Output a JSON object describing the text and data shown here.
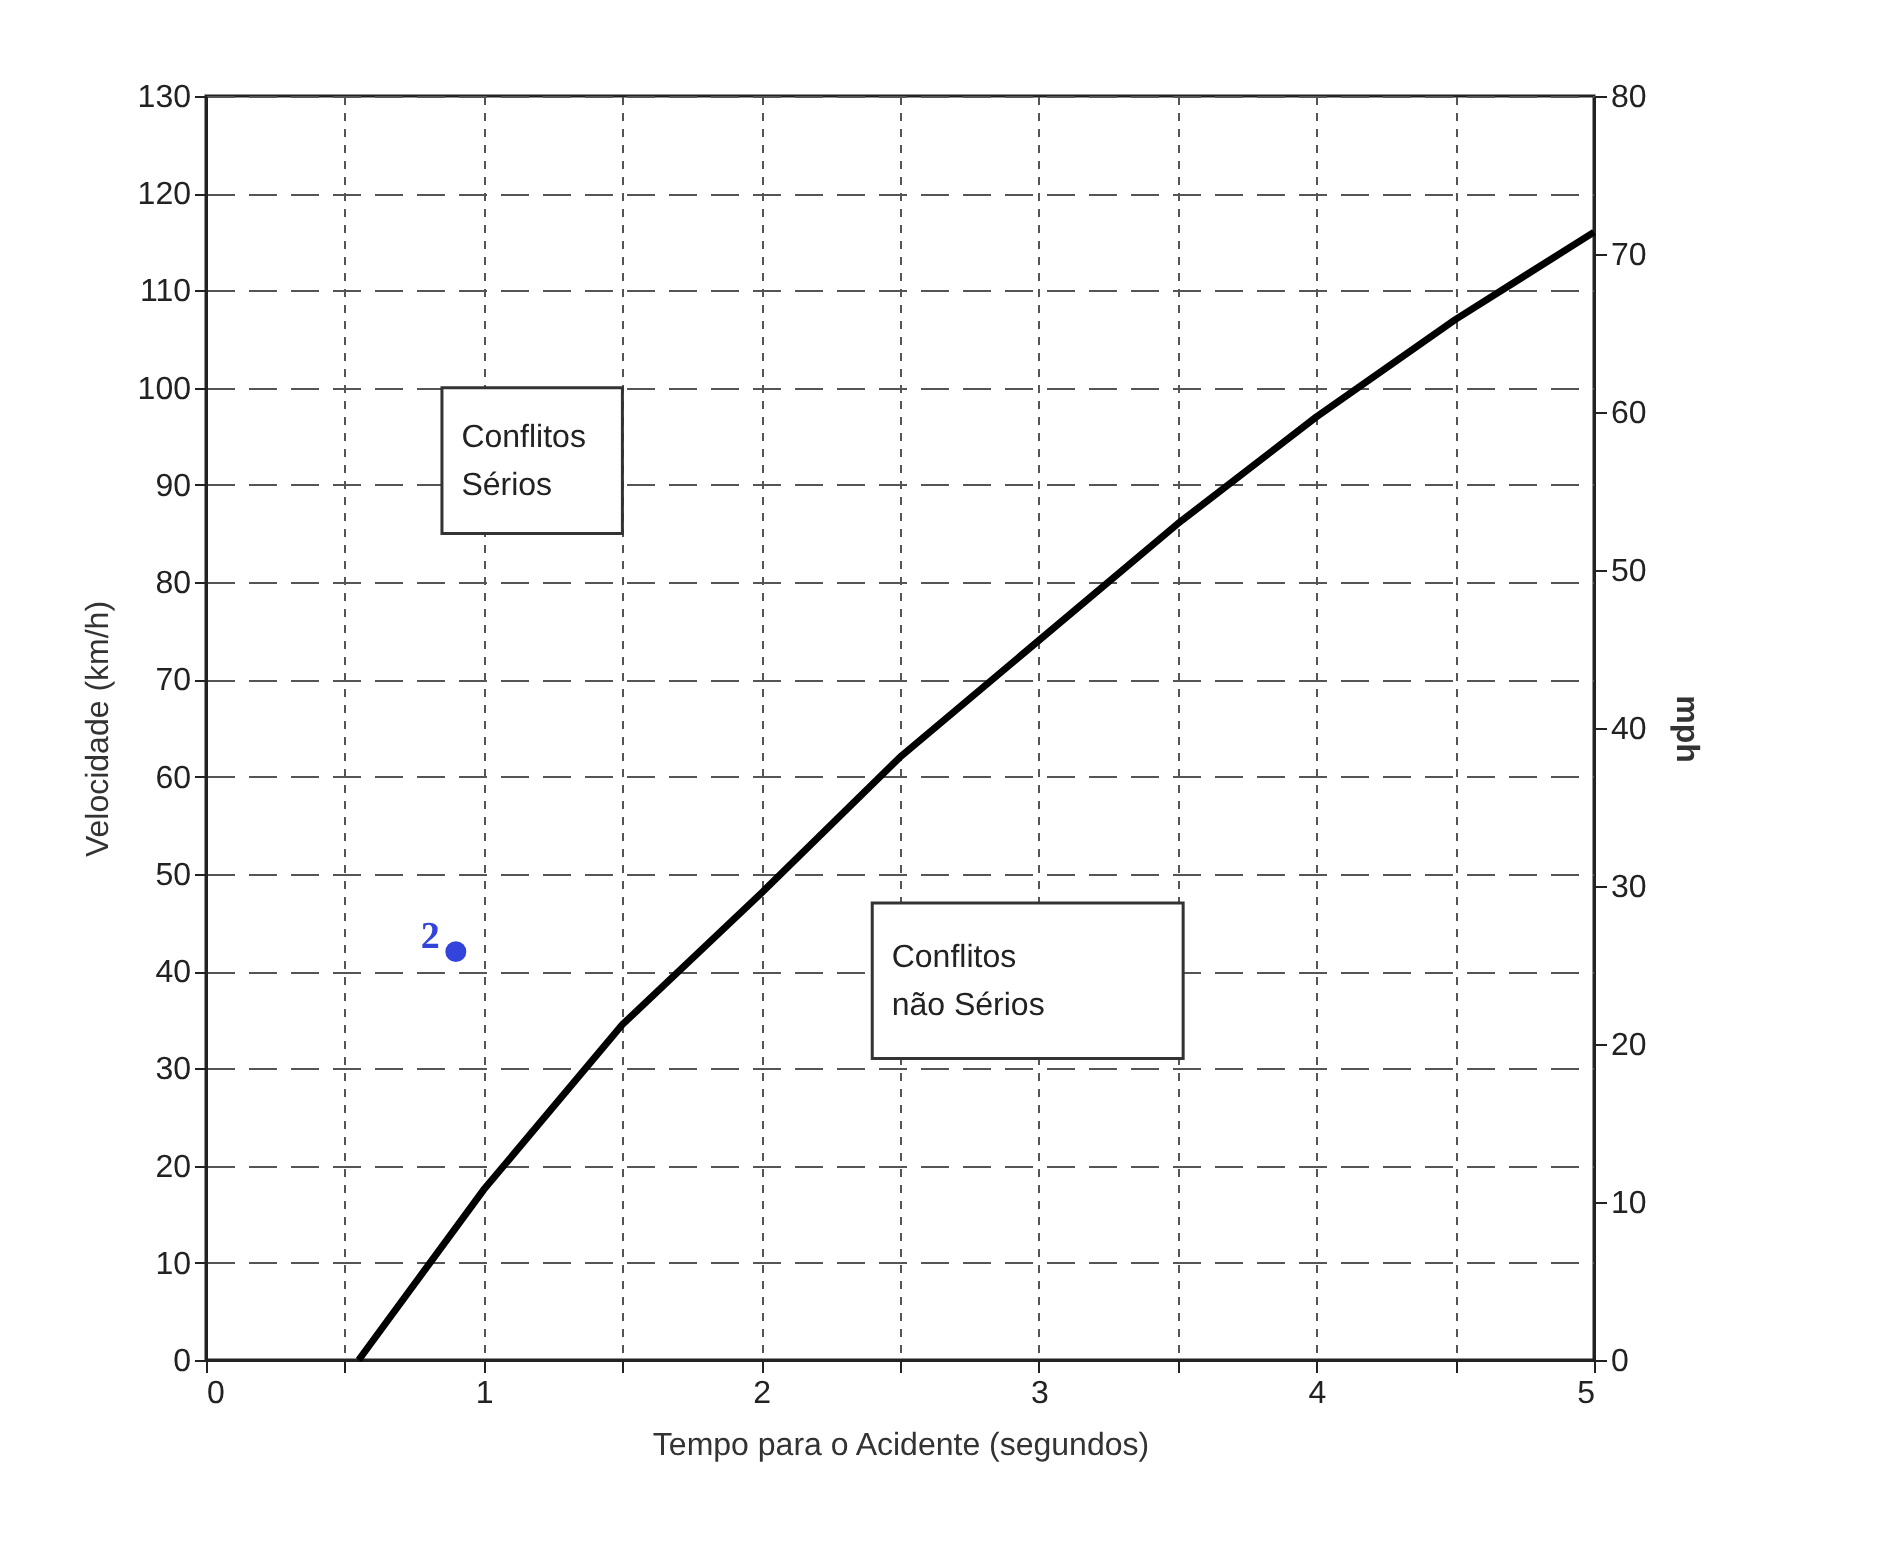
{
  "chart_data": {
    "type": "line",
    "xlabel": "Tempo para o Acidente (segundos)",
    "ylabel": "Velocidade (km/h)",
    "y2label": "mph",
    "annotations": [
      "Conflitos\nSérios",
      "Conflitos\nnão Sérios",
      {
        "text": "2",
        "x": 0.9,
        "y": 42
      }
    ],
    "series": [
      {
        "color": "#000000",
        "x": [
          0.55,
          1,
          1.5,
          2,
          2.5,
          3,
          3.5,
          4,
          4.5,
          5
        ],
        "values": [
          0,
          17.5,
          34.5,
          48,
          62,
          74,
          86,
          97,
          107,
          116
        ]
      },
      {
        "type": "scatter",
        "color": "#3344dd",
        "x": [
          0.9
        ],
        "values": [
          42
        ]
      }
    ],
    "xlim": [
      0,
      5
    ],
    "xticks": [
      0,
      {
        "value": 0.5,
        "label": null
      },
      1,
      {
        "value": 1.5,
        "label": null
      },
      2,
      {
        "value": 2.5,
        "label": null
      },
      3,
      {
        "value": 3.5,
        "label": null
      },
      4,
      {
        "value": 4.5,
        "label": null
      },
      5
    ],
    "ylim": [
      0,
      130
    ],
    "yticks": [
      0,
      10,
      20,
      30,
      40,
      50,
      60,
      70,
      80,
      90,
      100,
      110,
      120,
      130
    ],
    "y2lim": [
      0,
      80
    ],
    "y2ticks": [
      0,
      10,
      20,
      30,
      40,
      50,
      60,
      70,
      80
    ],
    "grid": true,
    "line_style": "solid"
  }
}
